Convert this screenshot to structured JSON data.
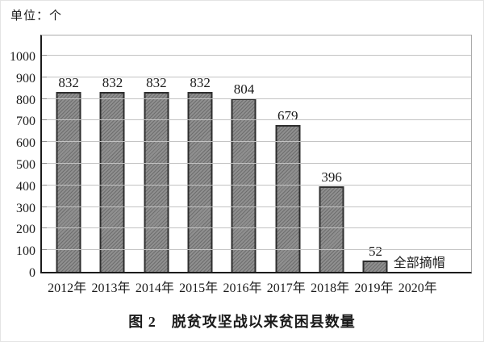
{
  "unit_label": "单位：个",
  "title": "图 2　脱贫攻坚战以来贫困县数量",
  "chart_data": {
    "type": "bar",
    "title": "图 2 脱贫攻坚战以来贫困县数量",
    "unit": "个",
    "categories": [
      "2012年",
      "2013年",
      "2014年",
      "2015年",
      "2016年",
      "2017年",
      "2018年",
      "2019年",
      "2020年"
    ],
    "values": [
      832,
      832,
      832,
      832,
      804,
      679,
      396,
      52,
      null
    ],
    "annotation": {
      "category": "2020年",
      "index": 8,
      "text": "全部摘帽"
    },
    "xlabel": "",
    "ylabel": "单位：个",
    "ylim": [
      0,
      1000
    ],
    "ytick_step": 100,
    "grid": true,
    "legend": "none",
    "bar_fill": "#8f8f8f",
    "bar_hatch_line": "#6d6d6d",
    "bar_border": "#2e2e2e",
    "grid_color": "#c3c3c3",
    "axis_color": "#1b1b1b"
  }
}
